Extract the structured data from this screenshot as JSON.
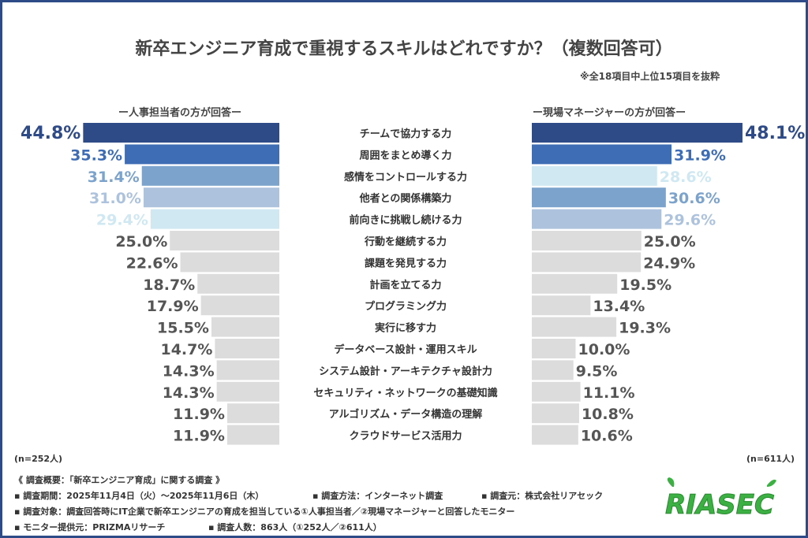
{
  "chart_data": {
    "type": "bar",
    "title": "新卒エンジニア育成で重視するスキルはどれですか？（複数回答可）",
    "note": "※全18項目中上位15項目を抜粋",
    "categories": [
      "チームで協力する力",
      "周囲をまとめ導く力",
      "感情をコントロールする力",
      "他者との関係構築力",
      "前向きに挑戦し続ける力",
      "行動を継続する力",
      "課題を発見する力",
      "計画を立てる力",
      "プログラミング力",
      "実行に移す力",
      "データベース設計・運用スキル",
      "システム設計・アーキテクチャ設計力",
      "セキュリティ・ネットワークの基礎知識",
      "アルゴリズム・データ構造の理解",
      "クラウドサービス活用力"
    ],
    "series": [
      {
        "name": "ー人事担当者の方が回答ー",
        "n": "(n=252人)",
        "values": [
          44.8,
          35.3,
          31.4,
          31.0,
          29.4,
          25.0,
          22.6,
          18.7,
          17.9,
          15.5,
          14.7,
          14.3,
          14.3,
          11.9,
          11.9
        ]
      },
      {
        "name": "ー現場マネージャーの方が回答ー",
        "n": "(n=611人)",
        "values": [
          48.1,
          31.9,
          28.6,
          30.6,
          29.6,
          25.0,
          24.9,
          19.5,
          13.4,
          19.3,
          10.0,
          9.5,
          11.1,
          10.8,
          10.6
        ]
      }
    ],
    "unit": "%",
    "rank_colors": [
      "#2e4a87",
      "#3e6db5",
      "#7ba3cc",
      "#adc3dd",
      "#cfe8f1"
    ],
    "other_color": "#dcdcdc",
    "value_label_gray": "#555555"
  },
  "footer": {
    "heading": "《 調査概要：「新卒エンジニア育成」に関する調査 》",
    "period": "▪ 調査期間：2025年11月4日（火）～2025年11月6日（木）",
    "method": "▪ 調査方法：インターネット調査",
    "source": "▪ 調査元：株式会社リアセック",
    "target": "▪ 調査対象：調査回答時にIT企業で新卒エンジニアの育成を担当している①人事担当者／②現場マネージャーと回答したモニター",
    "provider": "▪ モニター提供元：PRIZMAリサーチ",
    "count": "▪ 調査人数：863人（①252人／②611人）",
    "logo": "RIASEC"
  },
  "colors": {
    "border": "#2e4a87",
    "logo": "#3cb043"
  }
}
